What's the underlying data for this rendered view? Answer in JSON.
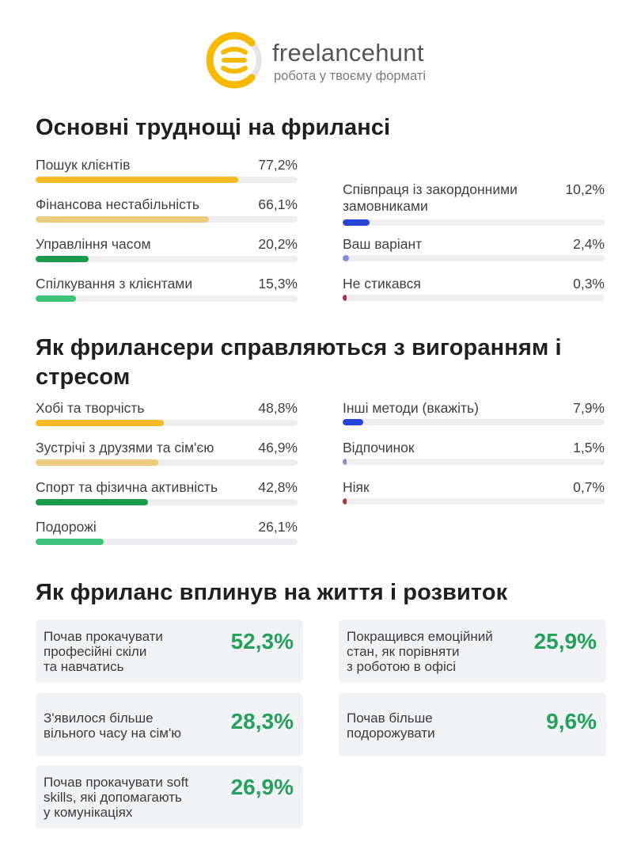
{
  "brand": {
    "name": "freelancehunt",
    "tagline": "робота у твоєму форматі",
    "colors": {
      "yellow": "#f7b900",
      "gray": "#e4e4e4"
    }
  },
  "sections": [
    {
      "title": "Основні труднощі на фрилансі",
      "left": [
        {
          "label": "Пошук клієнтів",
          "value": "77,2%",
          "color": "#f7b926"
        },
        {
          "label": "Фінансова нестабільність",
          "value": "66,1%",
          "color": "#ebcd7d"
        },
        {
          "label": "Управління часом",
          "value": "20,2%",
          "color": "#1b9a4c"
        },
        {
          "label": "Спілкування з клієнтами",
          "value": "15,3%",
          "color": "#3fc27a"
        }
      ],
      "right": [
        {
          "label": "Співпраця із закордонними замовниками",
          "value": "10,2%",
          "color": "#2545d6"
        },
        {
          "label": "Ваш варіант",
          "value": "2,4%",
          "color": "#7f8fd9"
        },
        {
          "label": "Не стикався",
          "value": "0,3%",
          "color": "#b23030"
        }
      ]
    },
    {
      "title": "Як фрилансери справляються з вигоранням і стресом",
      "left": [
        {
          "label": "Хобі та творчість",
          "value": "48,8%",
          "color": "#f7b926"
        },
        {
          "label": "Зустрічі з друзями та сім'єю",
          "value": "46,9%",
          "color": "#ebcd7d"
        },
        {
          "label": "Спорт та фізична активність",
          "value": "42,8%",
          "color": "#1b9a4c"
        },
        {
          "label": "Подорожі",
          "value": "26,1%",
          "color": "#3fc27a"
        }
      ],
      "right": [
        {
          "label": "Інші методи (вкажіть)",
          "value": "7,9%",
          "color": "#2545d6"
        },
        {
          "label": "Відпочинок",
          "value": "1,5%",
          "color": "#7f8fd9"
        },
        {
          "label": "Ніяк",
          "value": "0,7%",
          "color": "#b23030"
        }
      ]
    }
  ],
  "impact": {
    "title": "Як фриланс вплинув на життя і розвиток",
    "accent": "#24a15a",
    "items": [
      {
        "text": "Почав прокачувати\nпрофесійні скіли\nта навчатись",
        "value": "52,3%"
      },
      {
        "text": "Покращився емоційний\nстан, як порівняти\nз роботою в офісі",
        "value": "25,9%"
      },
      {
        "text": "З'явилося більше\nвільного часу на сім'ю",
        "value": "28,3%"
      },
      {
        "text": "Почав більше\nподорожувати",
        "value": "9,6%"
      },
      {
        "text": "Почав прокачувати soft\nskills, які допомагають\nу комунікаціях",
        "value": "26,9%"
      }
    ]
  },
  "chart_data": [
    {
      "type": "bar",
      "title": "Основні труднощі на фрилансі",
      "categories": [
        "Пошук клієнтів",
        "Фінансова нестабільність",
        "Управління часом",
        "Спілкування з клієнтами",
        "Співпраця із закордонними замовниками",
        "Ваш варіант",
        "Не стикався"
      ],
      "values": [
        77.2,
        66.1,
        20.2,
        15.3,
        10.2,
        2.4,
        0.3
      ],
      "ylim": [
        0,
        100
      ]
    },
    {
      "type": "bar",
      "title": "Як фрилансери справляються з вигоранням і стресом",
      "categories": [
        "Хобі та творчість",
        "Зустрічі з друзями та сім'єю",
        "Спорт та фізична активність",
        "Подорожі",
        "Інші методи (вкажіть)",
        "Відпочинок",
        "Ніяк"
      ],
      "values": [
        48.8,
        46.9,
        42.8,
        26.1,
        7.9,
        1.5,
        0.7
      ],
      "ylim": [
        0,
        100
      ]
    },
    {
      "type": "table",
      "title": "Як фриланс вплинув на життя і розвиток",
      "categories": [
        "Почав прокачувати професійні скіли та навчатись",
        "Покращився емоційний стан, як порівняти з роботою в офісі",
        "З'явилося більше вільного часу на сім'ю",
        "Почав більше подорожувати",
        "Почав прокачувати soft skills, які допомагають у комунікаціях"
      ],
      "values": [
        52.3,
        25.9,
        28.3,
        9.6,
        26.9
      ]
    }
  ]
}
